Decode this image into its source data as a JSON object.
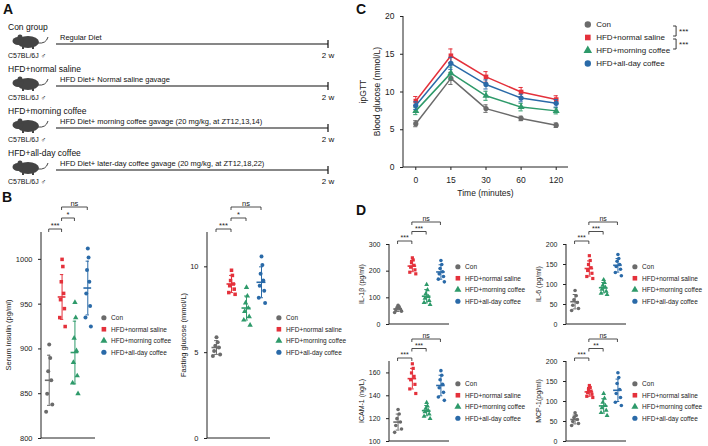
{
  "schematic": {
    "panel": "A",
    "groups": [
      {
        "name": "Con group",
        "strain": "C57BL/6J ♂",
        "treatment": "Regular Diet",
        "duration": "2 w"
      },
      {
        "name": "HFD+normal saline",
        "strain": "C57BL/6J ♂",
        "treatment": "HFD Diet+ Normal saline gavage",
        "duration": "2 w"
      },
      {
        "name": "HFD+morning coffee",
        "strain": "C57BL/6J ♂",
        "treatment": "HFD Diet+ morning coffee gavage (20 mg/kg, at ZT12,13,14)",
        "duration": "2 w"
      },
      {
        "name": "HFD+all-day coffee",
        "strain": "C57BL/6J ♂",
        "treatment": "HFD Diet+ later-day coffee gavage (20 mg/kg, at ZT12,18,22)",
        "duration": "2 w"
      }
    ]
  },
  "chart_data": [
    {
      "panel": "B",
      "type": "scatter",
      "ylabel": "Serum insulin (pg/ml)",
      "ylim": [
        800,
        1030
      ],
      "yticks": [
        800,
        850,
        900,
        950,
        1000
      ],
      "tick_labels": "y",
      "legend": "right",
      "series": [
        {
          "name": "Con",
          "color": "#6b6b6b",
          "marker": "circle",
          "values": [
            905,
            890,
            875,
            865,
            850,
            838,
            830
          ],
          "mean": 865,
          "error": 28
        },
        {
          "name": "HFD+normal saline",
          "color": "#e4313b",
          "marker": "square",
          "values": [
            1000,
            992,
            975,
            962,
            955,
            945,
            935,
            925
          ],
          "mean": 958,
          "error": 25
        },
        {
          "name": "HFD+morning coffee",
          "color": "#2e9a6a",
          "marker": "triangle",
          "values": [
            952,
            935,
            912,
            898,
            885,
            870,
            862,
            850
          ],
          "mean": 896,
          "error": 35
        },
        {
          "name": "HFD+all-day coffee",
          "color": "#2a6aa8",
          "marker": "circle",
          "values": [
            1012,
            1002,
            988,
            975,
            962,
            948,
            935,
            925
          ],
          "mean": 968,
          "error": 30
        }
      ],
      "comparisons": [
        {
          "groups": [
            "Con",
            "HFD+normal saline"
          ],
          "label": "***"
        },
        {
          "groups": [
            "HFD+normal saline",
            "HFD+morning coffee"
          ],
          "label": "*"
        },
        {
          "groups": [
            "HFD+normal saline",
            "HFD+all-day coffee"
          ],
          "label": "ns"
        }
      ]
    },
    {
      "type": "scatter",
      "ylabel": "Fasting glucose (mmol/L)",
      "ylim": [
        0,
        12
      ],
      "yticks": [
        0,
        5,
        10
      ],
      "tick_labels": "y",
      "legend": "right",
      "series": [
        {
          "name": "Con",
          "color": "#6b6b6b",
          "marker": "circle",
          "values": [
            5.9,
            5.6,
            5.4,
            5.3,
            5.1,
            4.9,
            4.8
          ],
          "mean": 5.3,
          "error": 0.4
        },
        {
          "name": "HFD+normal saline",
          "color": "#e4313b",
          "marker": "square",
          "values": [
            9.8,
            9.5,
            9.2,
            9.0,
            8.9,
            8.7,
            8.5,
            8.4
          ],
          "mean": 9.0,
          "error": 0.5
        },
        {
          "name": "HFD+morning coffee",
          "color": "#2e9a6a",
          "marker": "triangle",
          "values": [
            8.8,
            8.3,
            7.9,
            7.6,
            7.4,
            7.1,
            6.9,
            6.6
          ],
          "mean": 7.6,
          "error": 0.7
        },
        {
          "name": "HFD+all-day coffee",
          "color": "#2a6aa8",
          "marker": "circle",
          "values": [
            10.6,
            10.1,
            9.6,
            9.2,
            8.9,
            8.6,
            8.2,
            7.9
          ],
          "mean": 9.1,
          "error": 0.9
        }
      ],
      "comparisons": [
        {
          "groups": [
            "Con",
            "HFD+normal saline"
          ],
          "label": "***"
        },
        {
          "groups": [
            "HFD+normal saline",
            "HFD+morning coffee"
          ],
          "label": "*"
        },
        {
          "groups": [
            "HFD+normal saline",
            "HFD+all-day coffee"
          ],
          "label": "ns"
        }
      ]
    },
    {
      "panel": "C",
      "type": "line",
      "title": "ipGTT",
      "ylabel": "Blood glucose (mmol/L)",
      "xlabel": "Time (minutes)",
      "categories": [
        "0",
        "15",
        "30",
        "60",
        "120"
      ],
      "ylim": [
        0,
        20
      ],
      "yticks": [
        0,
        5,
        10,
        15,
        20
      ],
      "legend": "top-right",
      "series": [
        {
          "name": "Con",
          "color": "#6b6b6b",
          "marker": "circle",
          "values": [
            5.8,
            11.8,
            7.8,
            6.5,
            5.6
          ],
          "error": [
            0.4,
            0.8,
            0.5,
            0.3,
            0.3
          ]
        },
        {
          "name": "HFD+normal saline",
          "color": "#e4313b",
          "marker": "square",
          "values": [
            8.8,
            14.8,
            12.0,
            10.0,
            9.0
          ],
          "error": [
            0.6,
            0.9,
            0.7,
            0.6,
            0.5
          ]
        },
        {
          "name": "HFD+morning coffee",
          "color": "#2e9a6a",
          "marker": "triangle",
          "values": [
            7.5,
            12.5,
            9.5,
            8.0,
            7.5
          ],
          "error": [
            0.5,
            0.8,
            0.6,
            0.5,
            0.4
          ]
        },
        {
          "name": "HFD+all-day coffee",
          "color": "#2a6aa8",
          "marker": "circle",
          "values": [
            8.2,
            13.8,
            11.0,
            9.2,
            8.5
          ],
          "error": [
            0.5,
            0.8,
            0.6,
            0.5,
            0.5
          ]
        }
      ],
      "comparisons": [
        {
          "groups": [
            "Con",
            "HFD+normal saline"
          ],
          "label": "***"
        },
        {
          "groups": [
            "HFD+normal saline",
            "HFD+morning coffee"
          ],
          "label": "***"
        }
      ]
    },
    {
      "panel": "D",
      "type": "scatter",
      "ylabel": "IL-1β (pg/ml)",
      "ylim": [
        0,
        300
      ],
      "yticks": [
        0,
        100,
        200,
        300
      ],
      "tick_labels": "y",
      "legend": "right",
      "series": [
        {
          "name": "Con",
          "color": "#6b6b6b",
          "marker": "circle",
          "values": [
            72,
            66,
            62,
            58,
            55,
            50,
            45
          ],
          "mean": 58,
          "error": 9
        },
        {
          "name": "HFD+normal saline",
          "color": "#e4313b",
          "marker": "square",
          "values": [
            250,
            242,
            232,
            222,
            215,
            205,
            196,
            190
          ],
          "mean": 219,
          "error": 21
        },
        {
          "name": "HFD+morning coffee",
          "color": "#2e9a6a",
          "marker": "triangle",
          "values": [
            150,
            130,
            115,
            105,
            98,
            90,
            82,
            75
          ],
          "mean": 106,
          "error": 25
        },
        {
          "name": "HFD+all-day coffee",
          "color": "#2a6aa8",
          "marker": "circle",
          "values": [
            240,
            225,
            210,
            198,
            190,
            180,
            170,
            160
          ],
          "mean": 197,
          "error": 27
        }
      ],
      "comparisons": [
        {
          "groups": [
            "Con",
            "HFD+normal saline"
          ],
          "label": "***"
        },
        {
          "groups": [
            "HFD+normal saline",
            "HFD+morning coffee"
          ],
          "label": "***"
        },
        {
          "groups": [
            "HFD+normal saline",
            "HFD+all-day coffee"
          ],
          "label": "ns"
        }
      ]
    },
    {
      "type": "scatter",
      "ylabel": "IL-6 (pg/ml)",
      "ylim": [
        0,
        200
      ],
      "yticks": [
        0,
        50,
        100,
        150,
        200
      ],
      "tick_labels": "y",
      "legend": "right",
      "series": [
        {
          "name": "Con",
          "color": "#6b6b6b",
          "marker": "circle",
          "values": [
            85,
            72,
            62,
            55,
            48,
            40,
            35
          ],
          "mean": 57,
          "error": 18
        },
        {
          "name": "HFD+normal saline",
          "color": "#e4313b",
          "marker": "square",
          "values": [
            172,
            160,
            150,
            142,
            135,
            128,
            120,
            115
          ],
          "mean": 140,
          "error": 19
        },
        {
          "name": "HFD+morning coffee",
          "color": "#2e9a6a",
          "marker": "triangle",
          "values": [
            112,
            105,
            98,
            93,
            88,
            83,
            78,
            75
          ],
          "mean": 92,
          "error": 13
        },
        {
          "name": "HFD+all-day coffee",
          "color": "#2a6aa8",
          "marker": "circle",
          "values": [
            175,
            165,
            158,
            150,
            145,
            138,
            130,
            122
          ],
          "mean": 148,
          "error": 17
        }
      ],
      "comparisons": [
        {
          "groups": [
            "Con",
            "HFD+normal saline"
          ],
          "label": "***"
        },
        {
          "groups": [
            "HFD+normal saline",
            "HFD+morning coffee"
          ],
          "label": "***"
        },
        {
          "groups": [
            "HFD+normal saline",
            "HFD+all-day coffee"
          ],
          "label": "ns"
        }
      ]
    },
    {
      "type": "scatter",
      "ylabel": "ICAM-1 (ng/L)",
      "ylim": [
        100,
        170
      ],
      "yticks": [
        100,
        120,
        140,
        160
      ],
      "tick_labels": "y",
      "legend": "right",
      "series": [
        {
          "name": "Con",
          "color": "#6b6b6b",
          "marker": "circle",
          "values": [
            128,
            124,
            120,
            117,
            114,
            111,
            108
          ],
          "mean": 117,
          "error": 7
        },
        {
          "name": "HFD+normal saline",
          "color": "#e4313b",
          "marker": "square",
          "values": [
            168,
            164,
            160,
            157,
            154,
            150,
            146,
            142
          ],
          "mean": 155,
          "error": 9
        },
        {
          "name": "HFD+morning coffee",
          "color": "#2e9a6a",
          "marker": "triangle",
          "values": [
            134,
            131,
            129,
            127,
            126,
            124,
            122,
            120
          ],
          "mean": 127,
          "error": 4.5
        },
        {
          "name": "HFD+all-day coffee",
          "color": "#2a6aa8",
          "marker": "circle",
          "values": [
            162,
            158,
            154,
            150,
            147,
            143,
            139,
            136
          ],
          "mean": 149,
          "error": 9
        }
      ],
      "comparisons": [
        {
          "groups": [
            "Con",
            "HFD+normal saline"
          ],
          "label": "***"
        },
        {
          "groups": [
            "HFD+normal saline",
            "HFD+morning coffee"
          ],
          "label": "***"
        },
        {
          "groups": [
            "HFD+normal saline",
            "HFD+all-day coffee"
          ],
          "label": "ns"
        }
      ]
    },
    {
      "type": "scatter",
      "ylabel": "MCP-1(pg/ml)",
      "ylim": [
        0,
        200
      ],
      "yticks": [
        0,
        50,
        100,
        150,
        200
      ],
      "tick_labels": "y",
      "legend": "right",
      "series": [
        {
          "name": "Con",
          "color": "#6b6b6b",
          "marker": "circle",
          "values": [
            72,
            65,
            60,
            55,
            50,
            45,
            40
          ],
          "mean": 55,
          "error": 11
        },
        {
          "name": "HFD+normal saline",
          "color": "#e4313b",
          "marker": "square",
          "values": [
            140,
            135,
            130,
            126,
            122,
            118,
            113,
            110
          ],
          "mean": 124,
          "error": 11
        },
        {
          "name": "HFD+morning coffee",
          "color": "#2e9a6a",
          "marker": "triangle",
          "values": [
            120,
            108,
            98,
            90,
            84,
            78,
            72,
            65
          ],
          "mean": 89,
          "error": 18
        },
        {
          "name": "HFD+all-day coffee",
          "color": "#2a6aa8",
          "marker": "circle",
          "values": [
            172,
            160,
            145,
            130,
            120,
            110,
            98,
            90
          ],
          "mean": 128,
          "error": 28
        }
      ],
      "comparisons": [
        {
          "groups": [
            "Con",
            "HFD+normal saline"
          ],
          "label": "***"
        },
        {
          "groups": [
            "HFD+normal saline",
            "HFD+morning coffee"
          ],
          "label": "**"
        },
        {
          "groups": [
            "HFD+normal saline",
            "HFD+all-day coffee"
          ],
          "label": "ns"
        }
      ]
    }
  ]
}
